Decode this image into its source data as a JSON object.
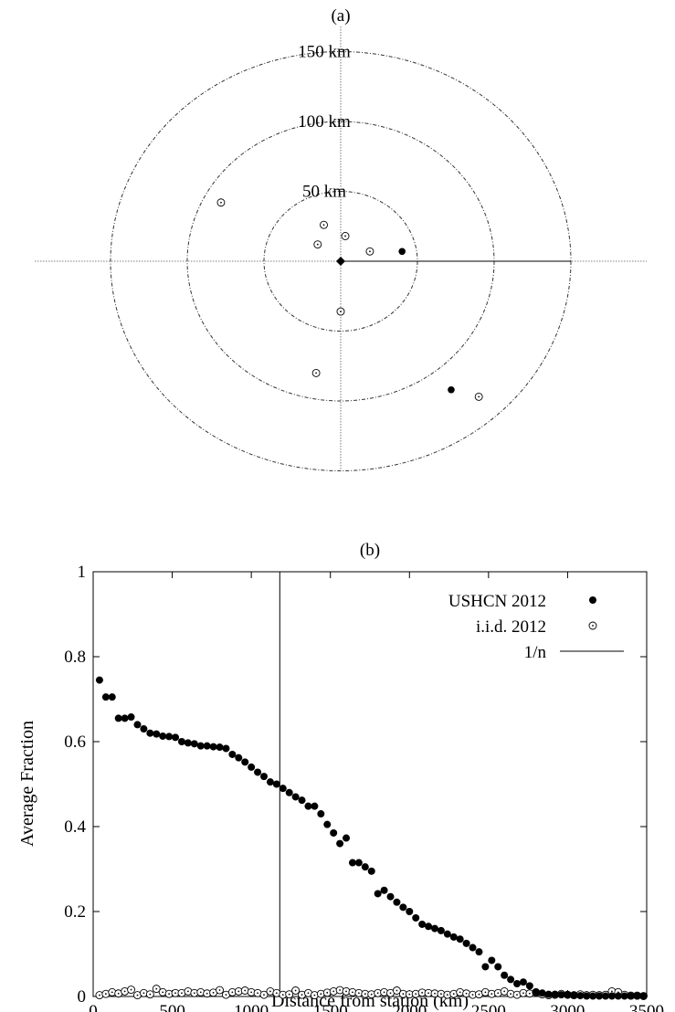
{
  "chart_data": [
    {
      "type": "scatter",
      "title": "(a)",
      "ring_labels": [
        "50 km",
        "100 km",
        "150 km"
      ],
      "rings_km": [
        50,
        100,
        150
      ],
      "center_station": {
        "x": 0,
        "y": 0
      },
      "ray_km": 150,
      "series": [
        {
          "marker": "open-dot",
          "points": [
            {
              "x": -78,
              "y": 42
            },
            {
              "x": -11,
              "y": 26
            },
            {
              "x": 3,
              "y": 18
            },
            {
              "x": -15,
              "y": 12
            },
            {
              "x": 19,
              "y": 7
            },
            {
              "x": 0,
              "y": -36
            },
            {
              "x": -16,
              "y": -80
            },
            {
              "x": 90,
              "y": -97
            }
          ]
        },
        {
          "marker": "filled-dot",
          "points": [
            {
              "x": 40,
              "y": 7
            },
            {
              "x": 72,
              "y": -92
            }
          ]
        }
      ]
    },
    {
      "type": "scatter",
      "title": "(b)",
      "xlabel": "Distance from station (km)",
      "ylabel": "Average Fraction",
      "xlim": [
        0,
        3500
      ],
      "ylim": [
        0,
        1
      ],
      "xticks": [
        "0",
        "500",
        "1000",
        "1500",
        "2000",
        "2500",
        "3000",
        "3500"
      ],
      "xtick_values": [
        0,
        500,
        1000,
        1500,
        2000,
        2500,
        3000,
        3500
      ],
      "yticks": [
        "0",
        "0.2",
        "0.4",
        "0.6",
        "0.8",
        "1"
      ],
      "ytick_values": [
        0,
        0.2,
        0.4,
        0.6,
        0.8,
        1
      ],
      "legend_position": "top-right",
      "vline_x": 1180,
      "series": [
        {
          "name": "USHCN 2012",
          "marker": "filled-dot",
          "x": [
            40,
            80,
            120,
            160,
            200,
            240,
            280,
            320,
            360,
            400,
            440,
            480,
            520,
            560,
            600,
            640,
            680,
            720,
            760,
            800,
            840,
            880,
            920,
            960,
            1000,
            1040,
            1080,
            1120,
            1160,
            1200,
            1240,
            1280,
            1320,
            1360,
            1400,
            1440,
            1480,
            1520,
            1560,
            1600,
            1640,
            1680,
            1720,
            1760,
            1800,
            1840,
            1880,
            1920,
            1960,
            2000,
            2040,
            2080,
            2120,
            2160,
            2200,
            2240,
            2280,
            2320,
            2360,
            2400,
            2440,
            2480,
            2520,
            2560,
            2600,
            2640,
            2680,
            2720,
            2760,
            2800,
            2840,
            2880,
            2920,
            2960,
            3000,
            3040,
            3080,
            3120,
            3160,
            3200,
            3240,
            3280,
            3320,
            3360,
            3400,
            3440,
            3480
          ],
          "y": [
            0.745,
            0.705,
            0.705,
            0.655,
            0.655,
            0.658,
            0.64,
            0.63,
            0.62,
            0.618,
            0.613,
            0.612,
            0.61,
            0.6,
            0.597,
            0.595,
            0.59,
            0.59,
            0.588,
            0.587,
            0.584,
            0.57,
            0.562,
            0.552,
            0.54,
            0.528,
            0.518,
            0.505,
            0.5,
            0.49,
            0.48,
            0.47,
            0.462,
            0.448,
            0.448,
            0.43,
            0.405,
            0.385,
            0.36,
            0.373,
            0.315,
            0.315,
            0.305,
            0.295,
            0.242,
            0.25,
            0.235,
            0.222,
            0.21,
            0.2,
            0.185,
            0.17,
            0.165,
            0.16,
            0.155,
            0.147,
            0.14,
            0.135,
            0.125,
            0.115,
            0.105,
            0.07,
            0.085,
            0.07,
            0.05,
            0.04,
            0.03,
            0.034,
            0.025,
            0.01,
            0.008,
            0.005,
            0.005,
            0.004,
            0.004,
            0.003,
            0.002,
            0.001,
            0.001,
            0.001,
            0.001,
            0.001,
            0.001,
            0.001,
            0.001,
            0.001,
            0.001
          ]
        },
        {
          "name": "i.i.d. 2012",
          "marker": "open-dot",
          "x": [
            40,
            80,
            120,
            160,
            200,
            240,
            280,
            320,
            360,
            400,
            440,
            480,
            520,
            560,
            600,
            640,
            680,
            720,
            760,
            800,
            840,
            880,
            920,
            960,
            1000,
            1040,
            1080,
            1120,
            1160,
            1200,
            1240,
            1280,
            1320,
            1360,
            1400,
            1440,
            1480,
            1520,
            1560,
            1600,
            1640,
            1680,
            1720,
            1760,
            1800,
            1840,
            1880,
            1920,
            1960,
            2000,
            2040,
            2080,
            2120,
            2160,
            2200,
            2240,
            2280,
            2320,
            2360,
            2400,
            2440,
            2480,
            2520,
            2560,
            2600,
            2640,
            2680,
            2720,
            2760,
            2800,
            2840,
            2880,
            2920,
            2960,
            3000,
            3040,
            3080,
            3120,
            3160,
            3200,
            3240,
            3280,
            3320,
            3360,
            3400,
            3440,
            3480
          ],
          "y": [
            0.003,
            0.006,
            0.01,
            0.007,
            0.012,
            0.016,
            0.003,
            0.008,
            0.005,
            0.018,
            0.01,
            0.006,
            0.008,
            0.008,
            0.012,
            0.008,
            0.01,
            0.007,
            0.009,
            0.015,
            0.004,
            0.01,
            0.012,
            0.014,
            0.01,
            0.008,
            0.004,
            0.012,
            0.008,
            0.004,
            0.005,
            0.014,
            0.004,
            0.008,
            0.003,
            0.006,
            0.009,
            0.012,
            0.015,
            0.012,
            0.01,
            0.008,
            0.006,
            0.005,
            0.008,
            0.01,
            0.008,
            0.014,
            0.006,
            0.005,
            0.006,
            0.009,
            0.008,
            0.007,
            0.006,
            0.004,
            0.006,
            0.01,
            0.007,
            0.004,
            0.005,
            0.01,
            0.006,
            0.008,
            0.012,
            0.006,
            0.004,
            0.008,
            0.007,
            0.01,
            0.005,
            0.003,
            0.004,
            0.006,
            0.004,
            0.003,
            0.005,
            0.003,
            0.004,
            0.003,
            0.004,
            0.012,
            0.01,
            0.004,
            0.002,
            0.002,
            0.001
          ]
        },
        {
          "name": "1/n",
          "marker": "line"
        }
      ]
    }
  ]
}
